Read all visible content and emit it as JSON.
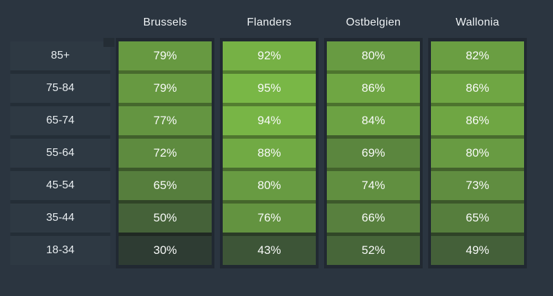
{
  "chart_data": {
    "type": "heatmap",
    "columns": [
      "Brussels",
      "Flanders",
      "Ostbelgien",
      "Wallonia"
    ],
    "rows": [
      "85+",
      "75-84",
      "65-74",
      "55-64",
      "45-54",
      "35-44",
      "18-34"
    ],
    "values": [
      [
        79,
        92,
        80,
        82
      ],
      [
        79,
        95,
        86,
        86
      ],
      [
        77,
        94,
        84,
        86
      ],
      [
        72,
        88,
        69,
        80
      ],
      [
        65,
        80,
        74,
        73
      ],
      [
        50,
        76,
        66,
        65
      ],
      [
        30,
        43,
        52,
        49
      ]
    ],
    "value_suffix": "%",
    "color_scale": {
      "min": 30,
      "max": 95,
      "low": "#2e3c33",
      "high": "#79b746"
    },
    "legend_position": "none",
    "grid": false
  },
  "colors": {
    "background": "#2b3540",
    "panel": "rgba(0,0,0,0.22)",
    "row_label_bg": "#2e3943",
    "row_separator": "#242e37",
    "cell_separator": "rgba(0,0,0,0.30)",
    "header_text": "#eef2f4",
    "label_text": "#e8edf0",
    "value_text": "#f8faf8"
  }
}
